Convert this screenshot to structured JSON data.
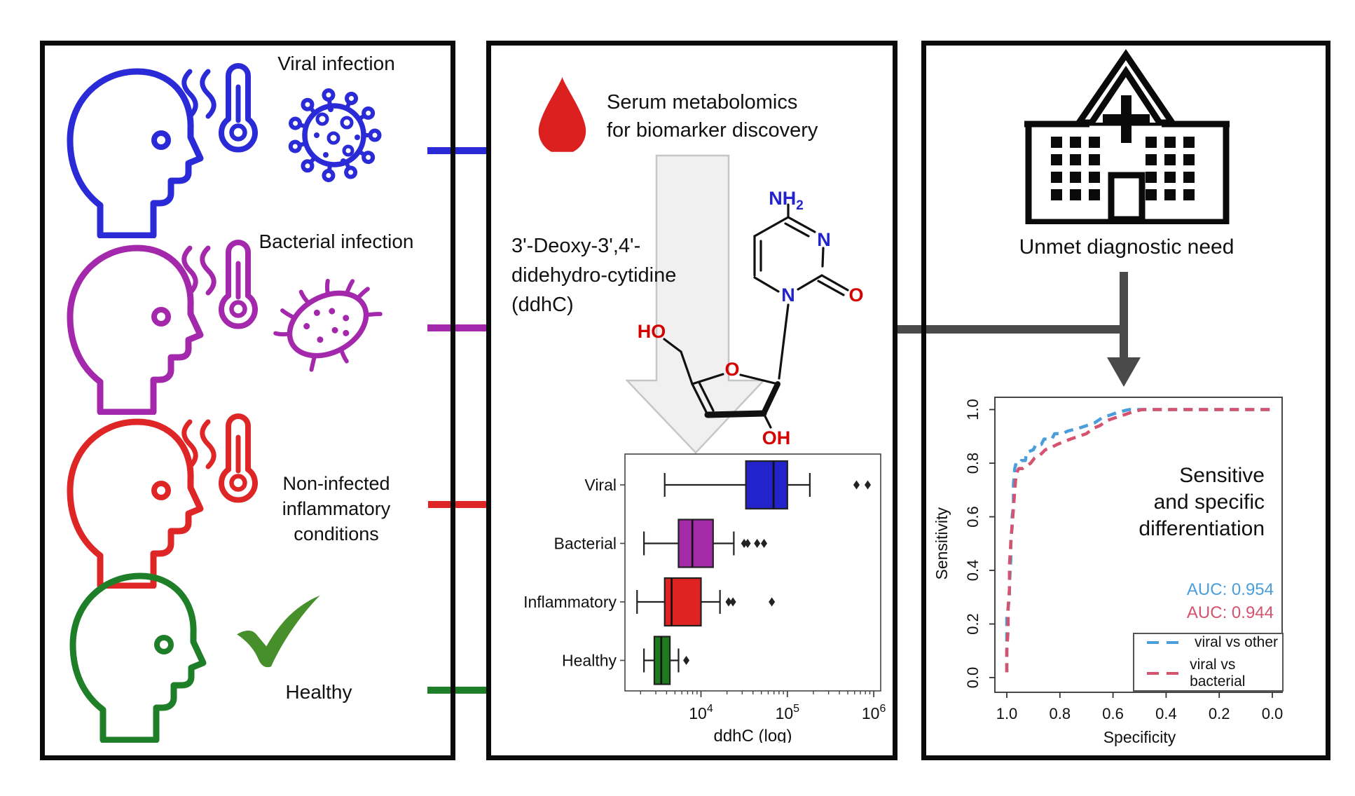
{
  "left_panel": {
    "groups": [
      {
        "label": "Viral infection",
        "color": "#2a2ad6"
      },
      {
        "label": "Bacterial infection",
        "color": "#a428ab"
      },
      {
        "label_lines": [
          "Non-infected",
          "inflammatory",
          "conditions"
        ],
        "color": "#de2626"
      },
      {
        "label": "Healthy",
        "color": "#1f7e28",
        "check_color": "#478f2b"
      }
    ]
  },
  "middle_panel": {
    "drop_color": "#dc2020",
    "title_lines": [
      "Serum metabolomics",
      "for biomarker discovery"
    ],
    "molecule_name_lines": [
      "3'-Deoxy-3',4'-",
      "didehydro-cytidine",
      "(ddhC)"
    ],
    "atoms": {
      "nh2": "NH",
      "nh2_sub": "2",
      "n_right": "N",
      "n_bottom": "N",
      "o_carbonyl": "O",
      "o_ring": "O",
      "ho": "HO",
      "oh": "OH"
    },
    "atom_colors": {
      "n": "#2323cc",
      "o": "#d40000"
    },
    "arrow_fill": "#f0f0f0",
    "arrow_stroke": "#c6c6c6"
  },
  "right_panel": {
    "need_label": "Unmet diagnostic need",
    "connector_color": "#4a4a4a",
    "result_lines": [
      "Sensitive",
      "and specific",
      "differentiation"
    ],
    "auc_values": [
      {
        "label": "AUC: 0.954",
        "color": "#4a9edb"
      },
      {
        "label": "AUC: 0.944",
        "color": "#d4536e"
      }
    ]
  },
  "chart_data": [
    {
      "type": "boxplot",
      "orientation": "horizontal",
      "xlabel": "ddhC (log)",
      "x_scale": "log10",
      "x_tick_exponents": [
        4,
        5,
        6
      ],
      "xlim_log10": [
        3.12,
        6.08
      ],
      "categories": [
        "Viral",
        "Bacterial",
        "Inflammatory",
        "Healthy"
      ],
      "series": [
        {
          "name": "Viral",
          "color": "#2323cc",
          "whisker_low": 3.58,
          "q1": 4.52,
          "median": 4.84,
          "q3": 5.0,
          "whisker_high": 5.26,
          "outliers_log10": [
            5.8,
            5.93
          ]
        },
        {
          "name": "Bacterial",
          "color": "#a32ba8",
          "whisker_low": 3.34,
          "q1": 3.74,
          "median": 3.9,
          "q3": 4.14,
          "whisker_high": 4.38,
          "outliers_log10": [
            4.5,
            4.54,
            4.65,
            4.73
          ]
        },
        {
          "name": "Inflammatory",
          "color": "#e02222",
          "whisker_low": 3.26,
          "q1": 3.58,
          "median": 3.66,
          "q3": 4.0,
          "whisker_high": 4.22,
          "outliers_log10": [
            4.32,
            4.37,
            4.82
          ]
        },
        {
          "name": "Healthy",
          "color": "#1d7a1d",
          "whisker_low": 3.34,
          "q1": 3.46,
          "median": 3.54,
          "q3": 3.64,
          "whisker_high": 3.74,
          "outliers_log10": [
            3.83
          ]
        }
      ]
    },
    {
      "type": "line",
      "subtype": "roc",
      "xlabel": "Specificity",
      "ylabel": "Sensitivity",
      "x_ticks": [
        1.0,
        0.8,
        0.6,
        0.4,
        0.2,
        0.0
      ],
      "y_ticks": [
        0.0,
        0.2,
        0.4,
        0.6,
        0.8,
        1.0
      ],
      "x_axis_reversed": true,
      "legend_position": "bottom-right",
      "series": [
        {
          "name": "viral vs other",
          "color": "#4a9edb",
          "auc": 0.954,
          "dashed": true,
          "points_spec_sens": [
            [
              1.0,
              0.02
            ],
            [
              1.0,
              0.13
            ],
            [
              1.0,
              0.22
            ],
            [
              0.99,
              0.3
            ],
            [
              0.99,
              0.35
            ],
            [
              0.985,
              0.44
            ],
            [
              0.985,
              0.52
            ],
            [
              0.98,
              0.56
            ],
            [
              0.98,
              0.6
            ],
            [
              0.975,
              0.64
            ],
            [
              0.975,
              0.72
            ],
            [
              0.97,
              0.78
            ],
            [
              0.965,
              0.8
            ],
            [
              0.95,
              0.8
            ],
            [
              0.945,
              0.81
            ],
            [
              0.93,
              0.81
            ],
            [
              0.925,
              0.84
            ],
            [
              0.9,
              0.85
            ],
            [
              0.89,
              0.87
            ],
            [
              0.87,
              0.87
            ],
            [
              0.86,
              0.89
            ],
            [
              0.83,
              0.89
            ],
            [
              0.82,
              0.91
            ],
            [
              0.79,
              0.91
            ],
            [
              0.77,
              0.92
            ],
            [
              0.73,
              0.93
            ],
            [
              0.7,
              0.94
            ],
            [
              0.67,
              0.95
            ],
            [
              0.64,
              0.97
            ],
            [
              0.61,
              0.98
            ],
            [
              0.58,
              0.99
            ],
            [
              0.54,
              1.0
            ],
            [
              0.35,
              1.0
            ],
            [
              0.15,
              1.0
            ],
            [
              0.0,
              1.0
            ]
          ]
        },
        {
          "name": "viral vs bacterial",
          "color": "#d4536e",
          "auc": 0.944,
          "dashed": true,
          "points_spec_sens": [
            [
              1.0,
              0.02
            ],
            [
              1.0,
              0.1
            ],
            [
              0.995,
              0.18
            ],
            [
              0.995,
              0.26
            ],
            [
              0.99,
              0.33
            ],
            [
              0.99,
              0.42
            ],
            [
              0.985,
              0.5
            ],
            [
              0.98,
              0.57
            ],
            [
              0.975,
              0.63
            ],
            [
              0.97,
              0.7
            ],
            [
              0.965,
              0.76
            ],
            [
              0.955,
              0.78
            ],
            [
              0.94,
              0.78
            ],
            [
              0.925,
              0.79
            ],
            [
              0.91,
              0.8
            ],
            [
              0.895,
              0.82
            ],
            [
              0.875,
              0.83
            ],
            [
              0.855,
              0.85
            ],
            [
              0.83,
              0.86
            ],
            [
              0.81,
              0.87
            ],
            [
              0.785,
              0.88
            ],
            [
              0.76,
              0.89
            ],
            [
              0.73,
              0.9
            ],
            [
              0.7,
              0.91
            ],
            [
              0.675,
              0.93
            ],
            [
              0.65,
              0.94
            ],
            [
              0.62,
              0.96
            ],
            [
              0.59,
              0.97
            ],
            [
              0.56,
              0.98
            ],
            [
              0.53,
              0.99
            ],
            [
              0.49,
              1.0
            ],
            [
              0.3,
              1.0
            ],
            [
              0.1,
              1.0
            ],
            [
              0.0,
              1.0
            ]
          ]
        }
      ]
    }
  ]
}
